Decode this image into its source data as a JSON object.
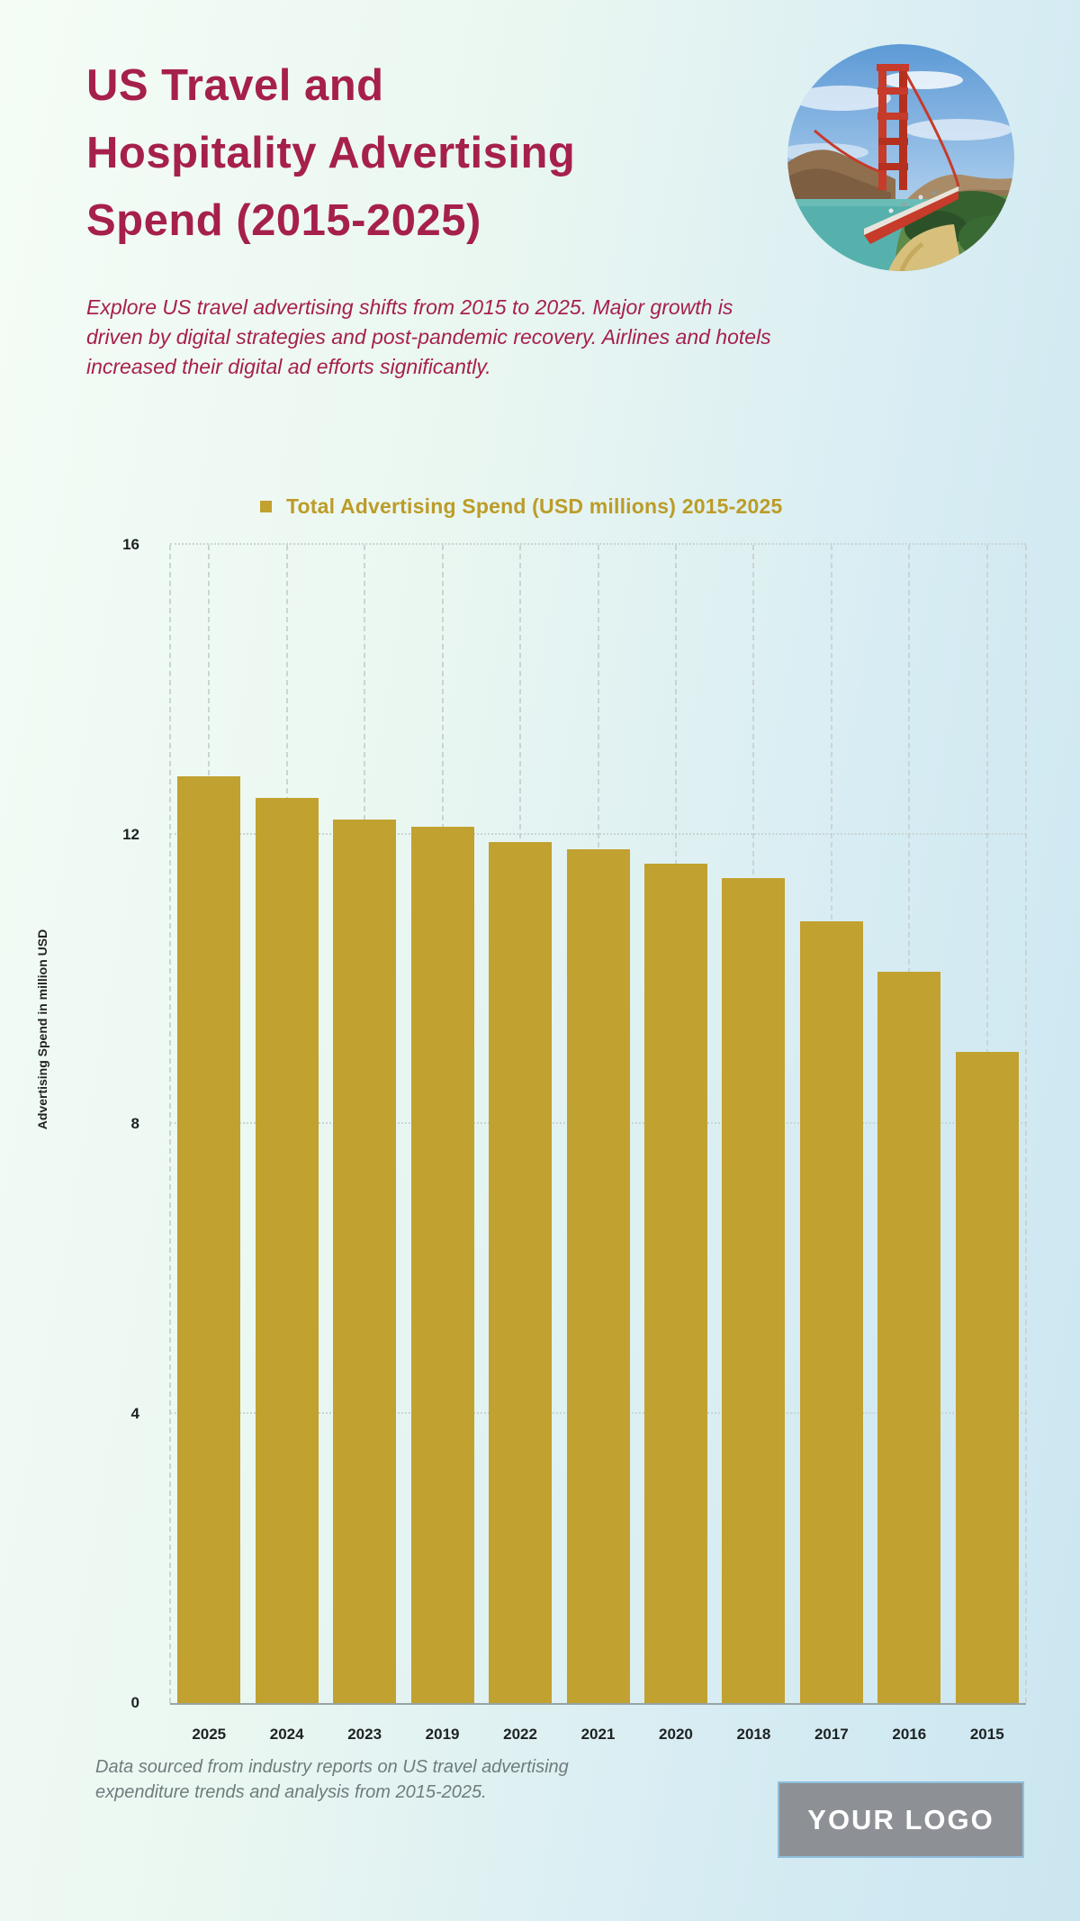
{
  "header": {
    "title_line1": "US Travel and",
    "title_line2": "Hospitality Advertising",
    "title_line3": "Spend (2015-2025)",
    "subtitle": "Explore US travel advertising shifts from 2015 to 2025. Major growth is driven by digital strategies and post-pandemic recovery. Airlines and hotels increased their digital ad efforts significantly.",
    "image_name": "golden-gate-bridge-photo"
  },
  "chart_data": {
    "type": "bar",
    "title": "Total Advertising Spend (USD millions) 2015-2025",
    "categories": [
      "2025",
      "2024",
      "2023",
      "2019",
      "2022",
      "2021",
      "2020",
      "2018",
      "2017",
      "2016",
      "2015"
    ],
    "values": [
      12.8,
      12.5,
      12.2,
      12.1,
      11.9,
      11.8,
      11.6,
      11.4,
      10.8,
      10.1,
      9.0
    ],
    "ylabel": "Advertising Spend in million USD",
    "xlabel": "",
    "yticks": [
      0,
      4,
      8,
      12,
      16
    ],
    "ylim": [
      0,
      16
    ],
    "grid": true,
    "legend_position": "top",
    "bar_color": "#C1A12F"
  },
  "footer": {
    "source_text": "Data sourced from industry reports on US travel advertising expenditure trends and analysis from 2015-2025.",
    "logo_text": "YOUR LOGO"
  },
  "colors": {
    "background_left": "#F5FCF6",
    "background_right": "#CBE6F0",
    "accent_crimson": "#A6204C",
    "accent_gold": "#C1A12F",
    "legend_text_gold": "#BC9C28",
    "axis_text": "#1E2222",
    "gridline": "#C9D5D5",
    "footer_gray": "#6E7C7C",
    "logo_background": "#8D9196",
    "logo_border": "#8FBEDC",
    "logo_text_color": "#FFFFFF"
  }
}
